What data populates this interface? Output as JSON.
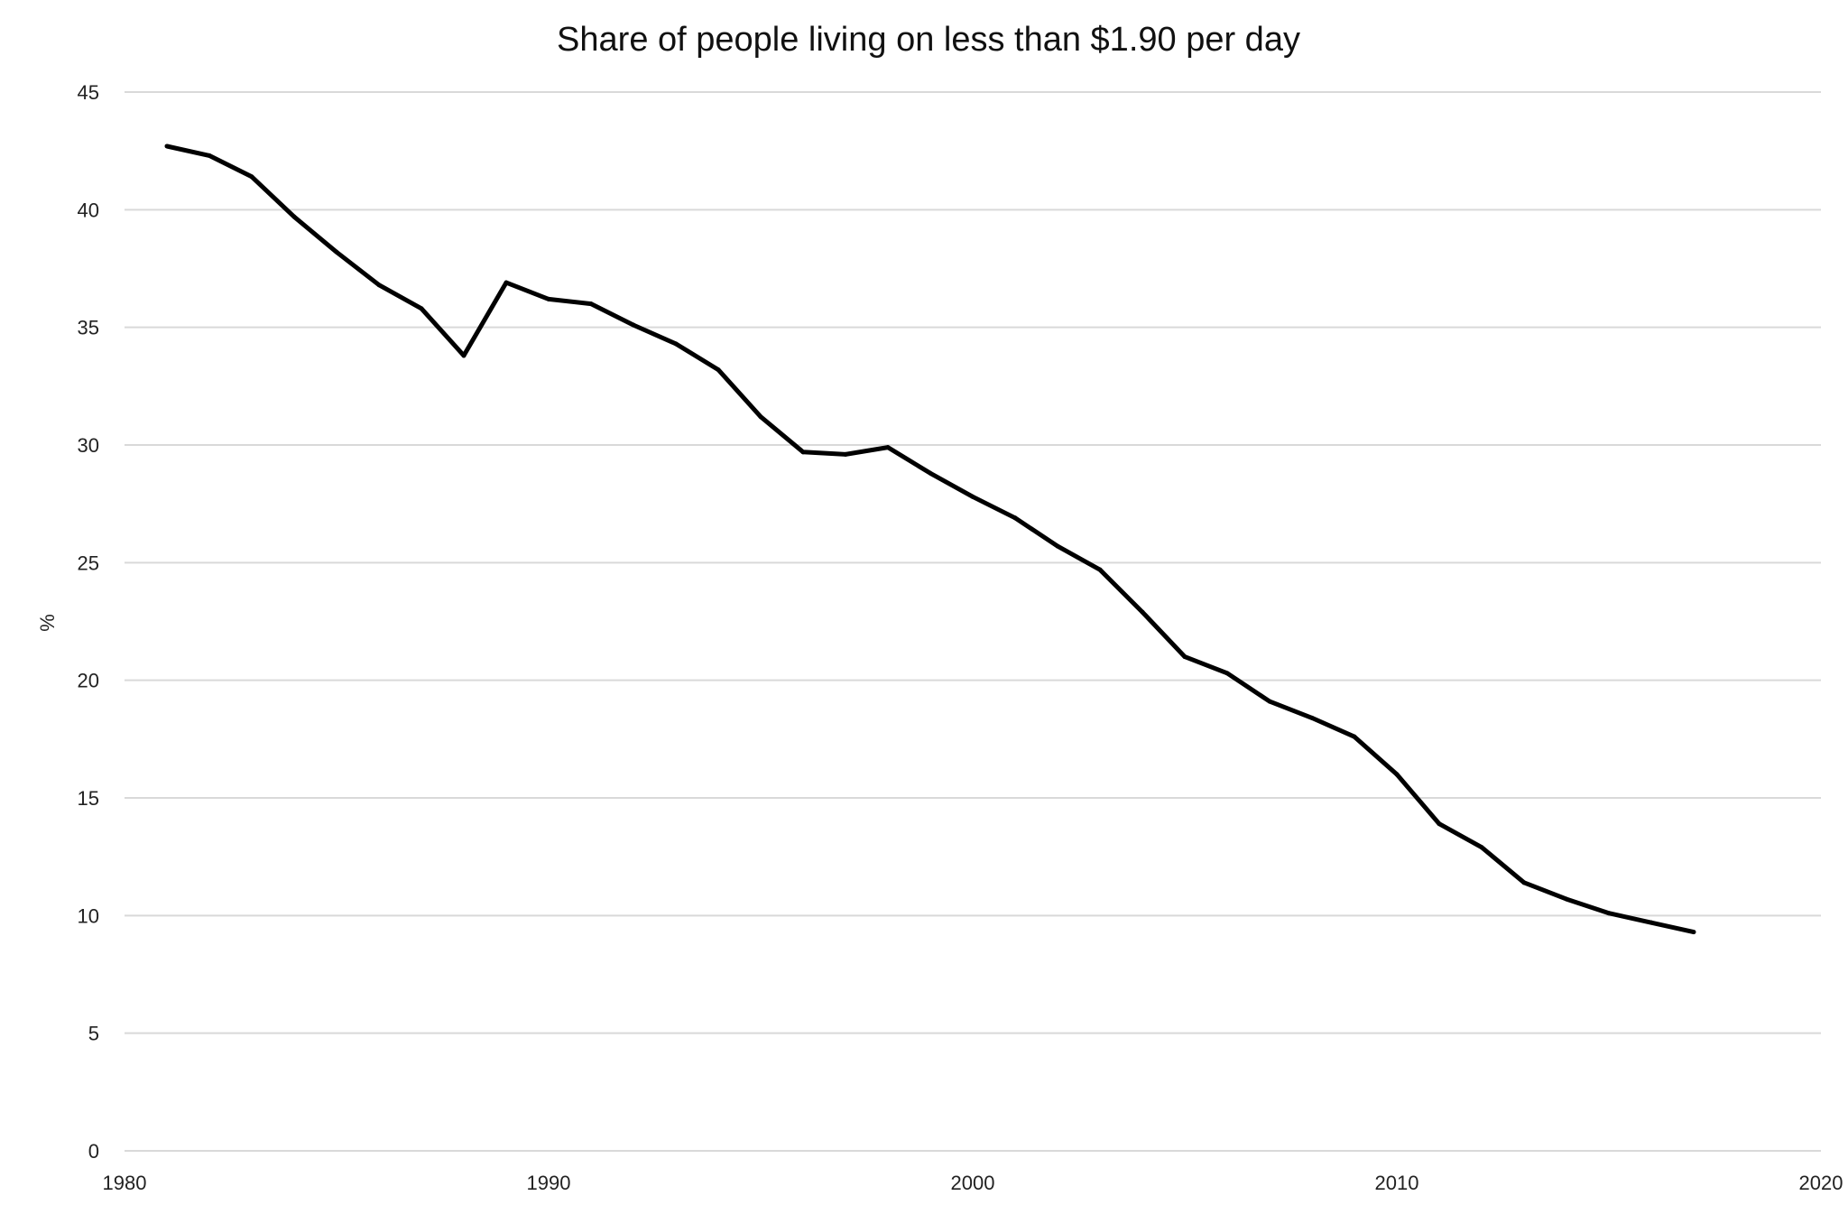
{
  "chart_data": {
    "type": "line",
    "title": "Share of people living on less than $1.90 per day",
    "xlabel": "",
    "ylabel": "%",
    "xlim": [
      1980,
      2020
    ],
    "ylim": [
      0,
      45
    ],
    "grid": "horizontal",
    "x_ticks": [
      "1980",
      "1990",
      "2000",
      "2010",
      "2020"
    ],
    "y_ticks": [
      "0",
      "5",
      "10",
      "15",
      "20",
      "25",
      "30",
      "35",
      "40",
      "45"
    ],
    "line_color": "#000000",
    "x": [
      1981,
      1982,
      1983,
      1984,
      1985,
      1986,
      1987,
      1988,
      1989,
      1990,
      1991,
      1992,
      1993,
      1994,
      1995,
      1996,
      1997,
      1998,
      1999,
      2000,
      2001,
      2002,
      2003,
      2004,
      2005,
      2006,
      2007,
      2008,
      2009,
      2010,
      2011,
      2012,
      2013,
      2014,
      2015,
      2016,
      2017
    ],
    "y": [
      42.7,
      42.3,
      41.4,
      39.7,
      38.2,
      36.8,
      35.8,
      33.8,
      36.9,
      36.2,
      36.0,
      35.1,
      34.3,
      33.2,
      31.2,
      29.7,
      29.6,
      29.9,
      28.8,
      27.8,
      26.9,
      25.7,
      24.7,
      22.9,
      21.0,
      20.3,
      19.1,
      18.4,
      17.6,
      16.0,
      13.9,
      12.9,
      11.4,
      10.7,
      10.1,
      9.7,
      9.3
    ]
  }
}
